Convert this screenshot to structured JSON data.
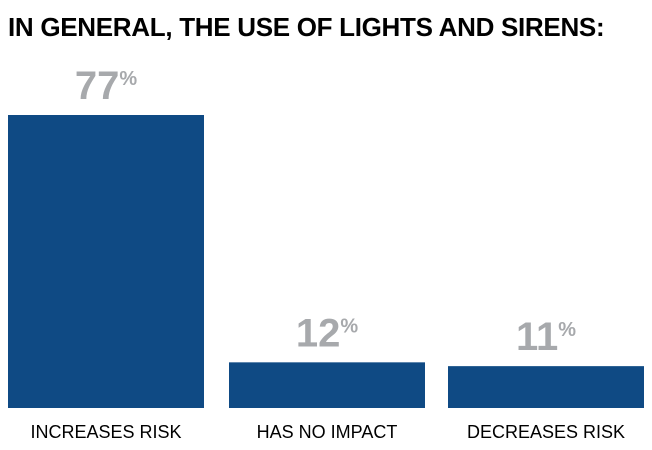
{
  "chart_data": {
    "type": "bar",
    "title": "IN GENERAL, THE USE OF LIGHTS AND SIRENS:",
    "categories": [
      "INCREASES RISK",
      "HAS NO IMPACT",
      "DECREASES RISK"
    ],
    "values": [
      77,
      12,
      11
    ],
    "value_suffix": "%",
    "ylim": [
      0,
      77
    ],
    "xlabel": "",
    "ylabel": "",
    "grid": false,
    "legend": "none"
  },
  "colors": {
    "bar": "#0f4a84",
    "value_label": "#a7a9ac",
    "title": "#000000",
    "category_label": "#000000"
  }
}
